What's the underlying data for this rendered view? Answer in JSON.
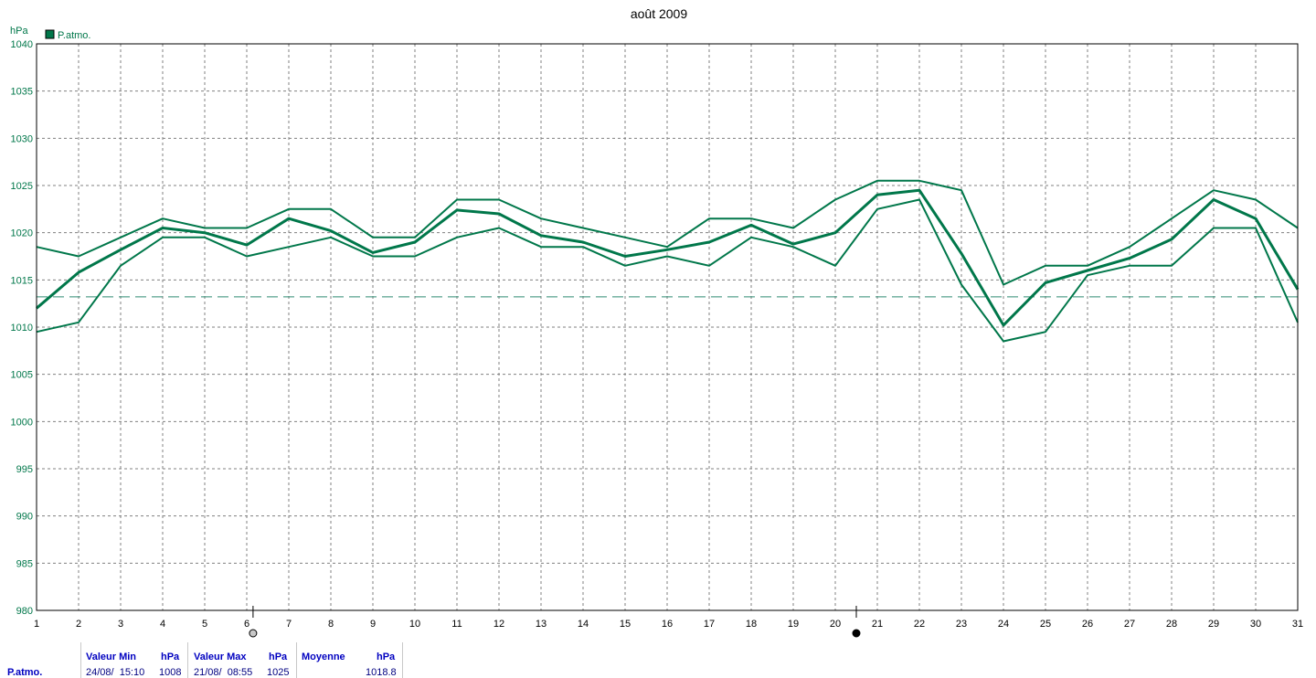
{
  "colors": {
    "series": "#00774a",
    "mean_line": "#2e8b70",
    "grid": "#808080",
    "axis_text": "#00774a",
    "frame": "#000000",
    "stats_header": "#0000c0"
  },
  "chart_data": {
    "type": "line",
    "title": "août 2009",
    "ylabel": "hPa",
    "xlabel": "",
    "ylim": [
      980,
      1040
    ],
    "yticks": [
      980,
      985,
      990,
      995,
      1000,
      1005,
      1010,
      1015,
      1020,
      1025,
      1030,
      1035,
      1040
    ],
    "xlim": [
      1,
      31
    ],
    "x": [
      1,
      2,
      3,
      4,
      5,
      6,
      7,
      8,
      9,
      10,
      11,
      12,
      13,
      14,
      15,
      16,
      17,
      18,
      19,
      20,
      21,
      22,
      23,
      24,
      25,
      26,
      27,
      28,
      29,
      30,
      31
    ],
    "grid": true,
    "legend": [
      {
        "label": "P.atmo.",
        "color": "#00774a",
        "position": "top-left"
      }
    ],
    "series": [
      {
        "role": "max",
        "values": [
          1018.5,
          1017.5,
          1019.5,
          1021.5,
          1020.5,
          1020.5,
          1022.5,
          1022.5,
          1019.5,
          1019.5,
          1023.5,
          1023.5,
          1021.5,
          1020.5,
          1019.5,
          1018.5,
          1021.5,
          1021.5,
          1020.5,
          1023.5,
          1025.5,
          1025.5,
          1024.5,
          1014.5,
          1016.5,
          1016.5,
          1018.5,
          1021.5,
          1024.5,
          1023.5,
          1020.5
        ]
      },
      {
        "role": "mean",
        "values": [
          1012,
          1015.8,
          1018.2,
          1020.5,
          1020,
          1018.7,
          1021.5,
          1020.2,
          1017.9,
          1019,
          1022.4,
          1022,
          1019.7,
          1019,
          1017.5,
          1018.2,
          1019,
          1020.8,
          1018.8,
          1020,
          1024,
          1024.5,
          1017.8,
          1010.2,
          1014.7,
          1016,
          1017.3,
          1019.3,
          1023.5,
          1021.5,
          1014
        ]
      },
      {
        "role": "min",
        "values": [
          1009.5,
          1010.5,
          1016.5,
          1019.5,
          1019.5,
          1017.5,
          1018.5,
          1019.5,
          1017.5,
          1017.5,
          1019.5,
          1020.5,
          1018.5,
          1018.5,
          1016.5,
          1017.5,
          1016.5,
          1019.5,
          1018.5,
          1016.5,
          1022.5,
          1023.5,
          1014.5,
          1008.5,
          1009.5,
          1015.5,
          1016.5,
          1016.5,
          1020.5,
          1020.5,
          1010.5
        ]
      }
    ],
    "reference_lines": [
      {
        "y": 1013.2,
        "style": "dashed"
      }
    ],
    "markers": [
      {
        "x": 6.15,
        "symbol": "open-circle"
      },
      {
        "x": 20.5,
        "symbol": "filled-circle"
      }
    ]
  },
  "stats": {
    "series_name": "P.atmo.",
    "min_header": "Valeur Min",
    "min_unit": "hPa",
    "min_date": "24/08/  15:10",
    "min_value": "1008",
    "max_header": "Valeur Max",
    "max_unit": "hPa",
    "max_date": "21/08/  08:55",
    "max_value": "1025",
    "mean_header": "Moyenne",
    "mean_unit": "hPa",
    "mean_value": "1018.8"
  }
}
